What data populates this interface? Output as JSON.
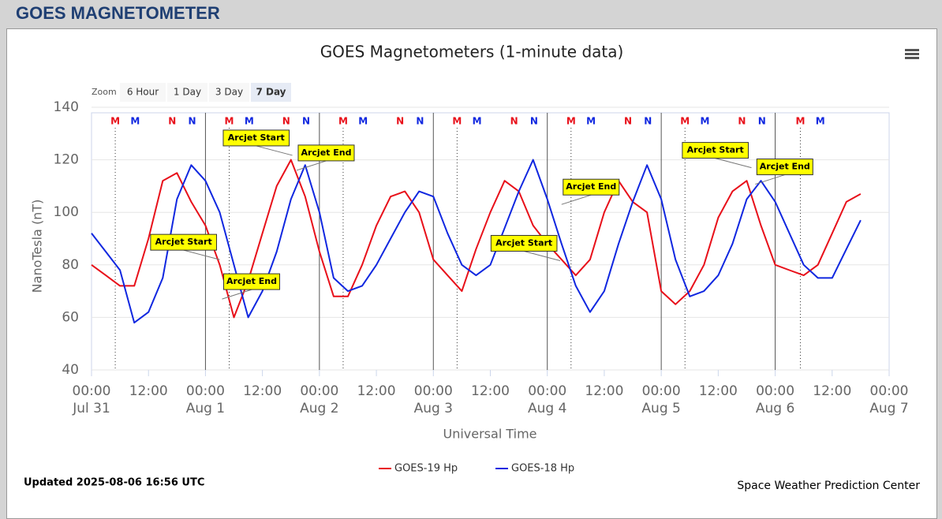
{
  "header": {
    "title": "GOES MAGNETOMETER"
  },
  "zoom": {
    "label": "Zoom",
    "options": [
      "6 Hour",
      "1 Day",
      "3 Day",
      "7 Day"
    ],
    "selected": "7 Day"
  },
  "footer": {
    "updated": "Updated 2025-08-06 16:56 UTC",
    "credit": "Space Weather Prediction Center"
  },
  "chart_data": {
    "type": "line",
    "title": "GOES Magnetometers (1-minute data)",
    "y_label": "NanoTesla (nT)",
    "x_label": "Universal Time",
    "ylim": [
      40,
      140
    ],
    "yticks": [
      40,
      60,
      80,
      100,
      120,
      140
    ],
    "xlim": [
      0,
      168
    ],
    "xticks": [
      {
        "value": 0,
        "label": "00:00"
      },
      {
        "value": 12,
        "label": "12:00"
      },
      {
        "value": 24,
        "label": "00:00"
      },
      {
        "value": 36,
        "label": "12:00"
      },
      {
        "value": 48,
        "label": "00:00"
      },
      {
        "value": 60,
        "label": "12:00"
      },
      {
        "value": 72,
        "label": "00:00"
      },
      {
        "value": 84,
        "label": "12:00"
      },
      {
        "value": 96,
        "label": "00:00"
      },
      {
        "value": 108,
        "label": "12:00"
      },
      {
        "value": 120,
        "label": "00:00"
      },
      {
        "value": 132,
        "label": "12:00"
      },
      {
        "value": 144,
        "label": "00:00"
      },
      {
        "value": 156,
        "label": "12:00"
      },
      {
        "value": 168,
        "label": "00:00"
      }
    ],
    "day_labels": [
      {
        "value": 0,
        "label": "Jul 31"
      },
      {
        "value": 24,
        "label": "Aug 1"
      },
      {
        "value": 48,
        "label": "Aug 2"
      },
      {
        "value": 72,
        "label": "Aug 3"
      },
      {
        "value": 96,
        "label": "Aug 4"
      },
      {
        "value": 120,
        "label": "Aug 5"
      },
      {
        "value": 144,
        "label": "Aug 6"
      },
      {
        "value": 168,
        "label": "Aug 7"
      }
    ],
    "grid": true,
    "x": [
      0,
      3,
      6,
      9,
      12,
      15,
      18,
      21,
      24,
      27,
      30,
      33,
      36,
      39,
      42,
      45,
      48,
      51,
      54,
      57,
      60,
      63,
      66,
      69,
      72,
      75,
      78,
      81,
      84,
      87,
      90,
      93,
      96,
      99,
      102,
      105,
      108,
      111,
      114,
      117,
      120,
      123,
      126,
      129,
      132,
      135,
      138,
      141,
      144,
      147,
      150,
      153,
      156,
      159,
      162
    ],
    "series": [
      {
        "name": "GOES-19 Hp",
        "color": "#e8101a",
        "values": [
          80,
          76,
          72,
          72,
          90,
          112,
          115,
          104,
          95,
          80,
          60,
          74,
          92,
          110,
          120,
          106,
          85,
          68,
          68,
          80,
          95,
          106,
          108,
          100,
          82,
          76,
          70,
          86,
          100,
          112,
          108,
          95,
          88,
          82,
          76,
          82,
          100,
          112,
          104,
          100,
          70,
          65,
          70,
          80,
          98,
          108,
          112,
          95,
          80,
          78,
          76,
          80,
          92,
          104,
          107
        ]
      },
      {
        "name": "GOES-18 Hp",
        "color": "#1027e0",
        "values": [
          92,
          85,
          78,
          58,
          62,
          75,
          105,
          118,
          112,
          100,
          80,
          60,
          70,
          85,
          105,
          118,
          100,
          75,
          70,
          72,
          80,
          90,
          100,
          108,
          106,
          92,
          80,
          76,
          80,
          94,
          108,
          120,
          105,
          88,
          72,
          62,
          70,
          88,
          104,
          118,
          105,
          82,
          68,
          70,
          76,
          88,
          105,
          112,
          104,
          92,
          80,
          75,
          75,
          86,
          97
        ]
      }
    ],
    "markers": [
      {
        "label": "M",
        "x": 5,
        "color": "#e8101a"
      },
      {
        "label": "M",
        "x": 9.2,
        "color": "#1027e0"
      },
      {
        "label": "N",
        "x": 17,
        "color": "#e8101a"
      },
      {
        "label": "N",
        "x": 21.2,
        "color": "#1027e0"
      },
      {
        "label": "M",
        "x": 29,
        "color": "#e8101a"
      },
      {
        "label": "M",
        "x": 33.2,
        "color": "#1027e0"
      },
      {
        "label": "N",
        "x": 41,
        "color": "#e8101a"
      },
      {
        "label": "N",
        "x": 45.2,
        "color": "#1027e0"
      },
      {
        "label": "M",
        "x": 53,
        "color": "#e8101a"
      },
      {
        "label": "M",
        "x": 57.2,
        "color": "#1027e0"
      },
      {
        "label": "N",
        "x": 65,
        "color": "#e8101a"
      },
      {
        "label": "N",
        "x": 69.2,
        "color": "#1027e0"
      },
      {
        "label": "M",
        "x": 77,
        "color": "#e8101a"
      },
      {
        "label": "M",
        "x": 81.2,
        "color": "#1027e0"
      },
      {
        "label": "N",
        "x": 89,
        "color": "#e8101a"
      },
      {
        "label": "N",
        "x": 93.2,
        "color": "#1027e0"
      },
      {
        "label": "M",
        "x": 101,
        "color": "#e8101a"
      },
      {
        "label": "M",
        "x": 105.2,
        "color": "#1027e0"
      },
      {
        "label": "N",
        "x": 113,
        "color": "#e8101a"
      },
      {
        "label": "N",
        "x": 117.2,
        "color": "#1027e0"
      },
      {
        "label": "M",
        "x": 125,
        "color": "#e8101a"
      },
      {
        "label": "M",
        "x": 129.2,
        "color": "#1027e0"
      },
      {
        "label": "N",
        "x": 137,
        "color": "#e8101a"
      },
      {
        "label": "N",
        "x": 141.2,
        "color": "#1027e0"
      },
      {
        "label": "M",
        "x": 149.3,
        "color": "#e8101a"
      },
      {
        "label": "M",
        "x": 153.5,
        "color": "#1027e0"
      }
    ],
    "annotations": [
      {
        "text": "Arcjet Start",
        "x": 27,
        "y": 82
      },
      {
        "text": "Arcjet End",
        "x": 27.5,
        "y": 67
      },
      {
        "text": "Arcjet Start",
        "x": 42.3,
        "y": 121.7
      },
      {
        "text": "Arcjet End",
        "x": 43.2,
        "y": 116
      },
      {
        "text": "Arcjet Start",
        "x": 98.7,
        "y": 81.6
      },
      {
        "text": "Arcjet End",
        "x": 99,
        "y": 103
      },
      {
        "text": "Arcjet Start",
        "x": 139,
        "y": 117
      },
      {
        "text": "Arcjet End",
        "x": 139.8,
        "y": 110.7
      }
    ]
  }
}
